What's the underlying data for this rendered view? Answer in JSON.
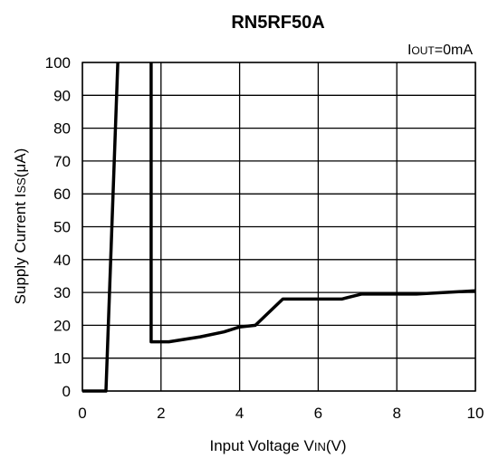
{
  "chart_data": {
    "type": "line",
    "title": "RN5RF50A",
    "annotation": {
      "main": "I",
      "sub": "OUT",
      "rest": "=0mA"
    },
    "xlabel": {
      "pre": "Input Voltage V",
      "sub": "IN",
      "post": "(V)"
    },
    "ylabel": {
      "pre": "Supply Current I",
      "sub": "SS",
      "post": "(μA)"
    },
    "xlim": [
      0,
      10
    ],
    "ylim": [
      0,
      100
    ],
    "xticks": [
      0,
      2,
      4,
      6,
      8,
      10
    ],
    "yticks": [
      0,
      10,
      20,
      30,
      40,
      50,
      60,
      70,
      80,
      90,
      100
    ],
    "grid": true,
    "series": [
      {
        "color": "#000000",
        "points": [
          [
            0,
            0
          ],
          [
            0.6,
            0
          ],
          [
            0.9,
            100
          ]
        ]
      },
      {
        "color": "#000000",
        "points": [
          [
            1.75,
            100
          ],
          [
            1.75,
            15
          ],
          [
            2.2,
            15
          ],
          [
            3,
            16.5
          ],
          [
            3.6,
            18
          ],
          [
            4,
            19.5
          ],
          [
            4.4,
            20
          ],
          [
            5.1,
            28
          ],
          [
            6.6,
            28
          ],
          [
            7.1,
            29.5
          ],
          [
            8.5,
            29.5
          ],
          [
            10,
            30.5
          ]
        ]
      }
    ]
  }
}
